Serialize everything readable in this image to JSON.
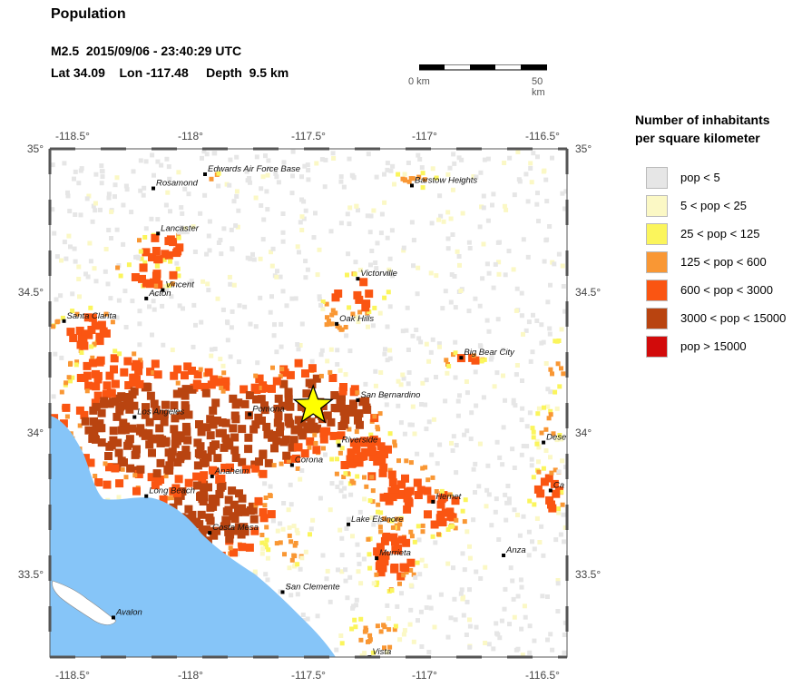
{
  "title": "Population",
  "event": {
    "line1": "M2.5  2015/09/06 - 23:40:29 UTC",
    "line2": "Lat 34.09    Lon -117.48     Depth  9.5 km"
  },
  "scalebar": {
    "left_label": "0 km",
    "right_label": "50 km"
  },
  "axes": {
    "x_ticks": [
      "-118.5°",
      "-118°",
      "-117.5°",
      "-117°",
      "-116.5°"
    ],
    "y_ticks": [
      "35°",
      "34.5°",
      "34°",
      "33.5°"
    ]
  },
  "epicenter": {
    "lat": 34.09,
    "lon": -117.48
  },
  "cities": [
    {
      "name": "Edwards Air Force Base",
      "lon": -117.94,
      "lat": 34.91
    },
    {
      "name": "Rosamond",
      "lon": -118.16,
      "lat": 34.86
    },
    {
      "name": "Barstow Heights",
      "lon": -117.06,
      "lat": 34.87
    },
    {
      "name": "Lancaster",
      "lon": -118.14,
      "lat": 34.7
    },
    {
      "name": "Victorville",
      "lon": -117.29,
      "lat": 34.54
    },
    {
      "name": "Vincent",
      "lon": -118.12,
      "lat": 34.5
    },
    {
      "name": "Acton",
      "lon": -118.19,
      "lat": 34.47
    },
    {
      "name": "Santa Clarita",
      "lon": -118.54,
      "lat": 34.39
    },
    {
      "name": "Oak Hills",
      "lon": -117.38,
      "lat": 34.38
    },
    {
      "name": "Big Bear City",
      "lon": -116.85,
      "lat": 34.26
    },
    {
      "name": "San Bernardino",
      "lon": -117.29,
      "lat": 34.11
    },
    {
      "name": "Los Angeles",
      "lon": -118.24,
      "lat": 34.05
    },
    {
      "name": "Pomona",
      "lon": -117.75,
      "lat": 34.06
    },
    {
      "name": "Riverside",
      "lon": -117.37,
      "lat": 33.95
    },
    {
      "name": "Corona",
      "lon": -117.57,
      "lat": 33.88
    },
    {
      "name": "Anaheim",
      "lon": -117.91,
      "lat": 33.84
    },
    {
      "name": "Long Beach",
      "lon": -118.19,
      "lat": 33.77
    },
    {
      "name": "Hemet",
      "lon": -116.97,
      "lat": 33.75
    },
    {
      "name": "Lake Elsinore",
      "lon": -117.33,
      "lat": 33.67
    },
    {
      "name": "Costa Mesa",
      "lon": -117.92,
      "lat": 33.64
    },
    {
      "name": "Murrieta",
      "lon": -117.21,
      "lat": 33.55
    },
    {
      "name": "Anza",
      "lon": -116.67,
      "lat": 33.56
    },
    {
      "name": "San Clemente",
      "lon": -117.61,
      "lat": 33.43
    },
    {
      "name": "Avalon",
      "lon": -118.33,
      "lat": 33.34
    },
    {
      "name": "Vista",
      "lon": -117.24,
      "lat": 33.2
    },
    {
      "name": "Dese",
      "lon": -116.5,
      "lat": 33.96
    },
    {
      "name": "Ca",
      "lon": -116.47,
      "lat": 33.79
    }
  ],
  "legend": {
    "title_line1": "Number of inhabitants",
    "title_line2": "per square kilometer",
    "items": [
      {
        "label": "pop < 5",
        "color": "#e6e6e6"
      },
      {
        "label": "5 < pop < 25",
        "color": "#fbf8c5"
      },
      {
        "label": "25 < pop < 125",
        "color": "#fbf55c"
      },
      {
        "label": "125 < pop < 600",
        "color": "#f99734"
      },
      {
        "label": "600 < pop < 3000",
        "color": "#fa5512"
      },
      {
        "label": "3000 < pop < 15000",
        "color": "#b94410"
      },
      {
        "label": "pop > 15000",
        "color": "#d20b0b"
      }
    ]
  }
}
